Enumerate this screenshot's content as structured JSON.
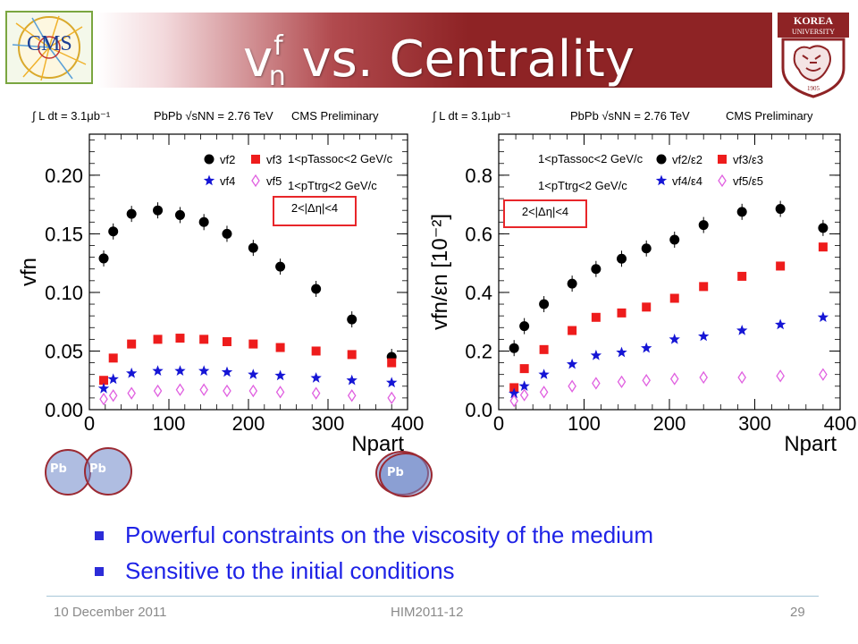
{
  "slide": {
    "title_v": "v",
    "title_sup": "f",
    "title_sub": "n",
    "title_rest": " vs. Centrality",
    "bullets": [
      "Powerful constraints on the viscosity of the medium",
      "Sensitive to the initial conditions"
    ],
    "footer": {
      "date": "10 December 2011",
      "conference": "HIM2011-12",
      "page": "29"
    },
    "logos": {
      "left": "CMS",
      "right_top": "KOREA",
      "right_bottom": "UNIVERSITY",
      "year": "1905"
    },
    "nucleus_labels": [
      "Pb",
      "Pb",
      "Pb"
    ]
  },
  "colors": {
    "title_band": "#8e2325",
    "bullet_text": "#1e22e6",
    "v2": "#000000",
    "v3": "#ee1c1c",
    "v4": "#1515d5",
    "v5": "#e060e0",
    "box": "#e8262a"
  },
  "chart_data": [
    {
      "type": "scatter",
      "header": {
        "lumi": "∫ L dt = 3.1μb⁻¹",
        "system": "PbPb √sNN = 2.76 TeV",
        "experiment": "CMS Preliminary"
      },
      "xlabel": "Npart",
      "ylabel": "vfn",
      "xlim": [
        0,
        400
      ],
      "ylim": [
        0,
        0.235
      ],
      "xticks": [
        "0",
        "100",
        "200",
        "300",
        "400"
      ],
      "yticks": [
        "0.00",
        "0.05",
        "0.10",
        "0.15",
        "0.20"
      ],
      "cuts": [
        "1<pTassoc<2 GeV/c",
        "1<pTtrg<2 GeV/c"
      ],
      "box_cut": "2<|Δη|<4",
      "legend": "top-right",
      "x": [
        18,
        30,
        53,
        86,
        114,
        144,
        173,
        206,
        240,
        285,
        330,
        380
      ],
      "series": [
        {
          "name": "vf2",
          "marker": "circle",
          "values": [
            0.129,
            0.152,
            0.167,
            0.17,
            0.166,
            0.16,
            0.15,
            0.138,
            0.122,
            0.103,
            0.077,
            0.045
          ]
        },
        {
          "name": "vf3",
          "marker": "square",
          "values": [
            0.025,
            0.044,
            0.056,
            0.06,
            0.061,
            0.06,
            0.058,
            0.056,
            0.053,
            0.05,
            0.047,
            0.04
          ]
        },
        {
          "name": "vf4",
          "marker": "star",
          "values": [
            0.018,
            0.026,
            0.031,
            0.033,
            0.033,
            0.033,
            0.032,
            0.03,
            0.029,
            0.027,
            0.025,
            0.023
          ]
        },
        {
          "name": "vf5",
          "marker": "diamond",
          "values": [
            0.009,
            0.012,
            0.014,
            0.016,
            0.017,
            0.017,
            0.016,
            0.016,
            0.015,
            0.014,
            0.012,
            0.01
          ]
        }
      ]
    },
    {
      "type": "scatter",
      "header": {
        "lumi": "∫ L dt = 3.1μb⁻¹",
        "system": "PbPb √sNN = 2.76 TeV",
        "experiment": "CMS Preliminary"
      },
      "xlabel": "Npart",
      "ylabel": "vfn/εn [10⁻²]",
      "xlim": [
        0,
        400
      ],
      "ylim": [
        0,
        0.94
      ],
      "xticks": [
        "0",
        "100",
        "200",
        "300",
        "400"
      ],
      "yticks": [
        "0.0",
        "0.2",
        "0.4",
        "0.6",
        "0.8"
      ],
      "cuts": [
        "1<pTassoc<2 GeV/c",
        "1<pTtrg<2 GeV/c"
      ],
      "box_cut": "2<|Δη|<4",
      "legend": "top-right",
      "x": [
        18,
        30,
        53,
        86,
        114,
        144,
        173,
        206,
        240,
        285,
        330,
        380
      ],
      "series": [
        {
          "name": "vf2/ε2",
          "marker": "circle",
          "values": [
            0.21,
            0.285,
            0.36,
            0.43,
            0.48,
            0.515,
            0.55,
            0.58,
            0.63,
            0.675,
            0.685,
            0.62
          ]
        },
        {
          "name": "vf3/ε3",
          "marker": "square",
          "values": [
            0.075,
            0.14,
            0.205,
            0.27,
            0.315,
            0.33,
            0.35,
            0.38,
            0.42,
            0.455,
            0.49,
            0.555
          ]
        },
        {
          "name": "vf4/ε4",
          "marker": "star",
          "values": [
            0.055,
            0.08,
            0.12,
            0.155,
            0.185,
            0.195,
            0.21,
            0.24,
            0.25,
            0.27,
            0.29,
            0.315
          ]
        },
        {
          "name": "vf5/ε5",
          "marker": "diamond",
          "values": [
            0.03,
            0.05,
            0.06,
            0.08,
            0.09,
            0.095,
            0.1,
            0.105,
            0.11,
            0.11,
            0.115,
            0.12
          ]
        }
      ]
    }
  ]
}
